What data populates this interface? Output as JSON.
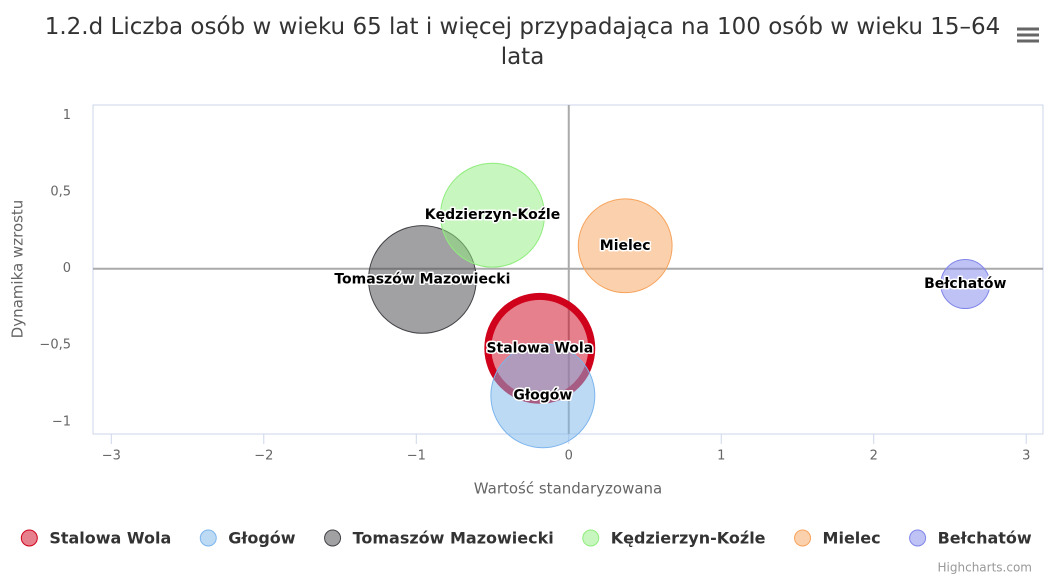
{
  "chart_data": {
    "type": "bubble",
    "title": "1.2.d Liczba osób w wieku 65 lat i więcej przypadająca na 100 osób w wieku 15–64 lata",
    "xlabel": "Wartość standaryzowana",
    "ylabel": "Dynamika wzrostu",
    "xlim": [
      -3.12,
      3.11
    ],
    "ylim": [
      -1.08,
      1.07
    ],
    "xticks": [
      {
        "value": -3,
        "label": "−3"
      },
      {
        "value": -2,
        "label": "−2"
      },
      {
        "value": -1,
        "label": "−1"
      },
      0,
      1,
      2,
      3
    ],
    "yticks": [
      {
        "value": -1,
        "label": "−1"
      },
      {
        "value": -0.5,
        "label": "−0,5"
      },
      0,
      {
        "value": 0.5,
        "label": "0,5"
      },
      1
    ],
    "grid": false,
    "legend": "bottom",
    "credits": "Highcharts.com",
    "series": [
      {
        "name": "Stalowa Wola",
        "color": "#d0021b",
        "lineWidth": 7,
        "x": [
          -0.19
        ],
        "values": [
          -0.52
        ],
        "sizes": [
          27
        ]
      },
      {
        "name": "Głogów",
        "color": "#7cb5ec",
        "x": [
          -0.17
        ],
        "values": [
          -0.83
        ],
        "sizes": [
          27
        ]
      },
      {
        "name": "Tomaszów Mazowiecki",
        "color": "#434348",
        "x": [
          -0.96
        ],
        "values": [
          -0.07
        ],
        "sizes": [
          29
        ]
      },
      {
        "name": "Kędzierzyn-Koźle",
        "color": "#90ed7d",
        "x": [
          -0.5
        ],
        "values": [
          0.35
        ],
        "sizes": [
          27
        ]
      },
      {
        "name": "Mielec",
        "color": "#f7a35c",
        "x": [
          0.37
        ],
        "values": [
          0.15
        ],
        "sizes": [
          22
        ]
      },
      {
        "name": "Bełchatów",
        "color": "#8085e9",
        "x": [
          2.6
        ],
        "values": [
          -0.1
        ],
        "sizes": [
          6
        ]
      }
    ]
  }
}
